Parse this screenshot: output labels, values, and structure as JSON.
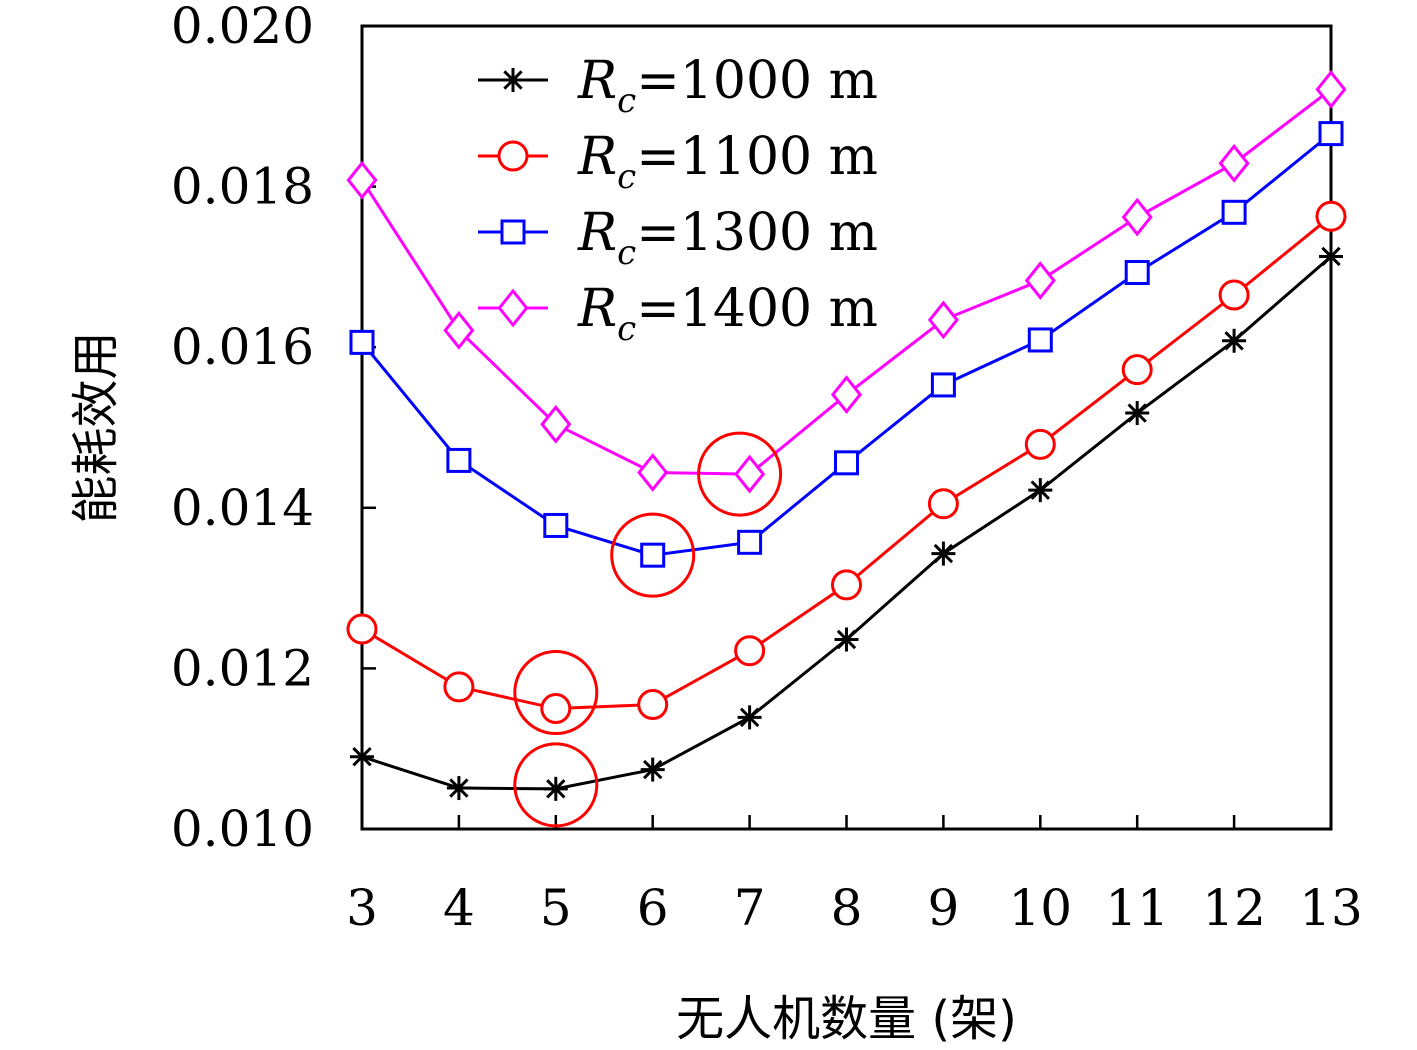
{
  "chart_data": {
    "type": "line",
    "xlabel": "无人机数量 (架)",
    "ylabel": "能耗效用",
    "x": [
      3,
      4,
      5,
      6,
      7,
      8,
      9,
      10,
      11,
      12,
      13
    ],
    "x_tick_labels": [
      "3",
      "4",
      "5",
      "6",
      "7",
      "8",
      "9",
      "10",
      "11",
      "12",
      "13"
    ],
    "xlim": [
      3,
      13
    ],
    "ylim": [
      0.01,
      0.02
    ],
    "y_ticks": [
      0.01,
      0.012,
      0.014,
      0.016,
      0.018,
      0.02
    ],
    "y_tick_labels": [
      "0.010",
      "0.012",
      "0.014",
      "0.016",
      "0.018",
      "0.020"
    ],
    "grid": false,
    "legend_position": "top-left",
    "series": [
      {
        "name": "Rc=1000 m",
        "name_symbol": "R",
        "name_subscript": "c",
        "name_rest": "=1000 m",
        "color": "#000000",
        "marker": "asterisk",
        "values": [
          0.0109,
          0.01051,
          0.0105,
          0.01074,
          0.01139,
          0.01236,
          0.01343,
          0.01422,
          0.01518,
          0.01608,
          0.01713
        ],
        "highlight_x": 5
      },
      {
        "name": "Rc=1100 m",
        "name_symbol": "R",
        "name_subscript": "c",
        "name_rest": "=1100 m",
        "color": "#ff0000",
        "marker": "circle",
        "values": [
          0.01249,
          0.01177,
          0.0115,
          0.01155,
          0.01222,
          0.01304,
          0.01405,
          0.01479,
          0.01572,
          0.01665,
          0.01763
        ],
        "highlight_x": 5
      },
      {
        "name": "Rc=1300 m",
        "name_symbol": "R",
        "name_subscript": "c",
        "name_rest": "=1300 m",
        "color": "#0000ff",
        "marker": "square",
        "values": [
          0.01606,
          0.01459,
          0.01378,
          0.01341,
          0.01357,
          0.01456,
          0.01553,
          0.01609,
          0.01693,
          0.01768,
          0.01866
        ],
        "highlight_x": 6
      },
      {
        "name": "Rc=1400 m",
        "name_symbol": "R",
        "name_subscript": "c",
        "name_rest": "=1400 m",
        "color": "#ff00ff",
        "marker": "diamond",
        "values": [
          0.01808,
          0.01621,
          0.01504,
          0.01444,
          0.01442,
          0.01541,
          0.01634,
          0.01683,
          0.01762,
          0.01829,
          0.01921
        ],
        "highlight_x": 7
      }
    ]
  }
}
